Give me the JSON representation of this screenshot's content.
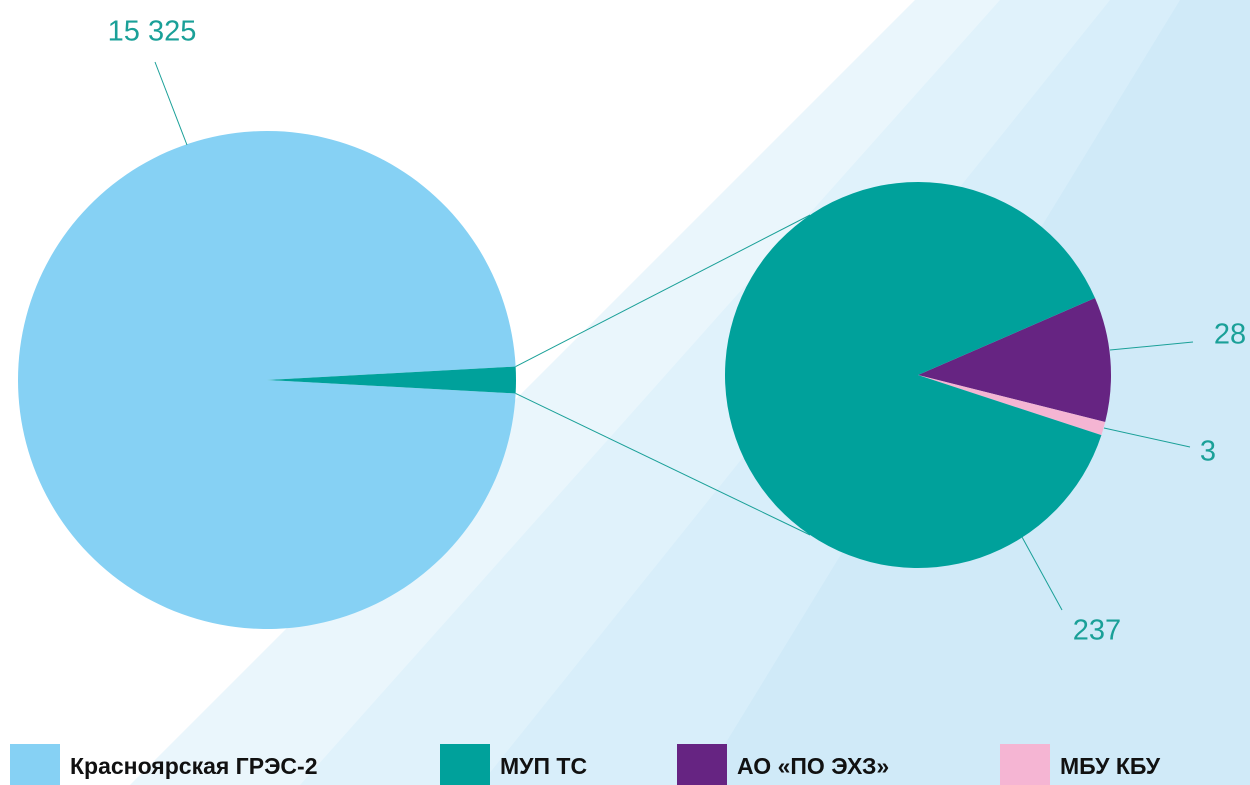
{
  "chart_data": {
    "type": "pie-of-pie",
    "categories": [
      "Красноярская ГРЭС-2",
      "МУП ТС",
      "АО «ПО ЭХЗ»",
      "МБУ КБУ"
    ],
    "values": [
      15325,
      237,
      28,
      3
    ],
    "value_labels": [
      "15 325",
      "237",
      "28",
      "3"
    ],
    "colors": [
      "#86d1f4",
      "#00a19b",
      "#662482",
      "#f5b5d3"
    ],
    "legend": "bottom"
  }
}
